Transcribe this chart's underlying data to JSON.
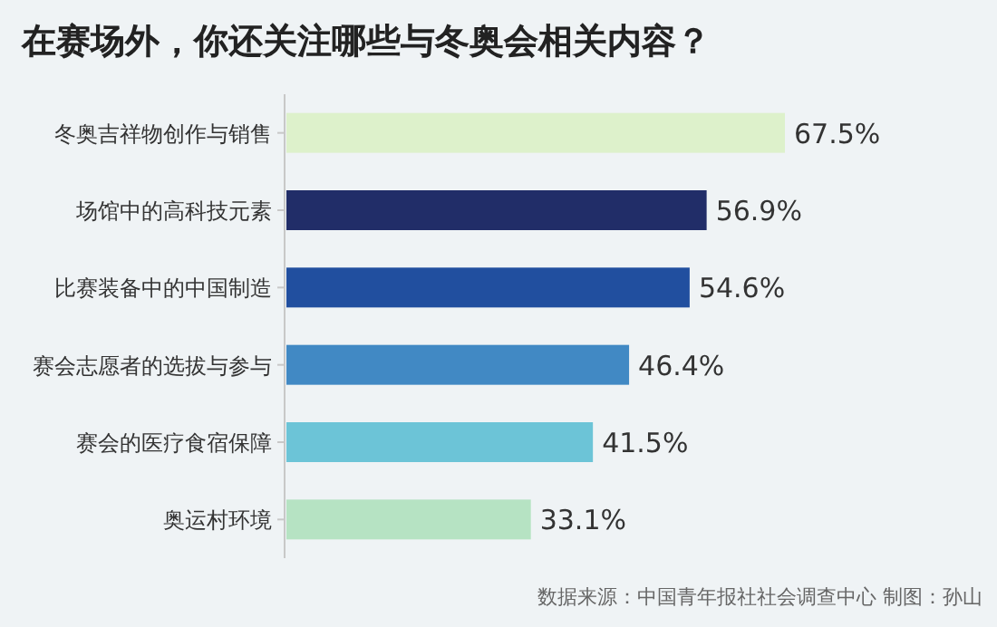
{
  "chart_data": {
    "type": "bar",
    "orientation": "horizontal",
    "title": "在赛场外，你还关注哪些与冬奥会相关内容？",
    "categories": [
      "冬奥吉祥物创作与销售",
      "场馆中的高科技元素",
      "比赛装备中的中国制造",
      "赛会志愿者的选拔与参与",
      "赛会的医疗食宿保障",
      "奥运村环境"
    ],
    "values": [
      67.5,
      56.9,
      54.6,
      46.4,
      41.5,
      33.1
    ],
    "value_labels": [
      "67.5%",
      "56.9%",
      "54.6%",
      "46.4%",
      "41.5%",
      "33.1%"
    ],
    "colors": [
      "#ddf1cb",
      "#212d68",
      "#214f9f",
      "#4189c4",
      "#6cc4d7",
      "#b6e3c3"
    ],
    "annotations": [
      "数据来源：中国青年报社社会调查中心 制图：孙山"
    ]
  }
}
